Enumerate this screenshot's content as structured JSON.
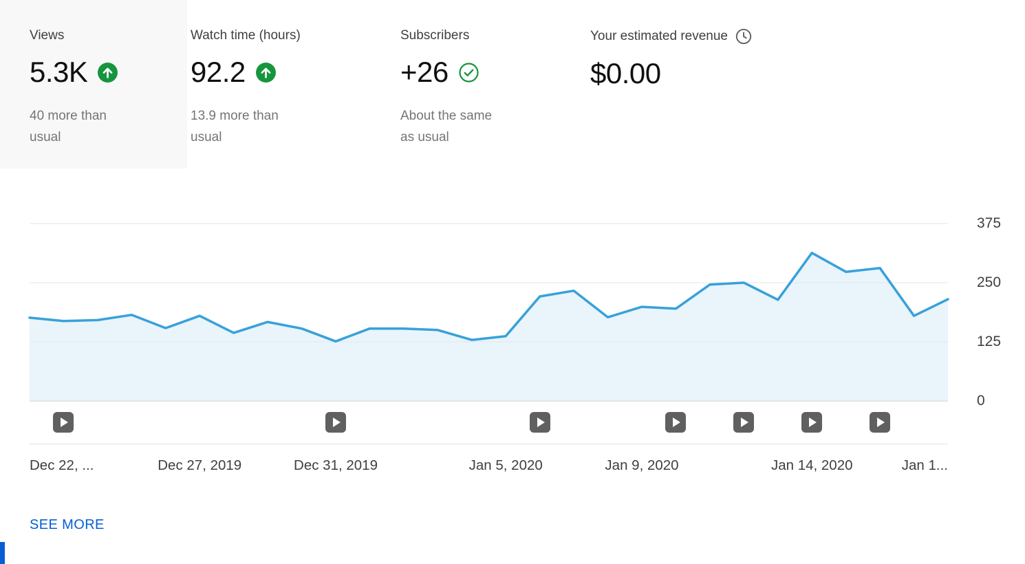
{
  "cards": [
    {
      "title": "Views",
      "value": "5.3K",
      "subtitle": "40 more than usual",
      "trend": "up",
      "selected": true
    },
    {
      "title": "Watch time (hours)",
      "value": "92.2",
      "subtitle": "13.9 more than usual",
      "trend": "up",
      "selected": false
    },
    {
      "title": "Subscribers",
      "value": "+26",
      "subtitle": "About the same as usual",
      "trend": "same-check",
      "selected": false
    },
    {
      "title": "Your estimated revenue",
      "value": "$0.00",
      "subtitle": "",
      "trend": "none",
      "selected": false
    }
  ],
  "icons": {
    "trend_up": "arrow-up-in-green-circle",
    "same_as_usual": "check-in-green-circle-outline",
    "revenue_info": "clock-outline",
    "upload_marker": "play-button"
  },
  "chart_data": {
    "type": "area",
    "x": [
      "Dec 22",
      "Dec 23",
      "Dec 24",
      "Dec 25",
      "Dec 26",
      "Dec 27",
      "Dec 28",
      "Dec 29",
      "Dec 30",
      "Dec 31",
      "Jan 1",
      "Jan 2",
      "Jan 3",
      "Jan 4",
      "Jan 5",
      "Jan 6",
      "Jan 7",
      "Jan 8",
      "Jan 9",
      "Jan 10",
      "Jan 11",
      "Jan 12",
      "Jan 13",
      "Jan 14",
      "Jan 15",
      "Jan 16",
      "Jan 17",
      "Jan 18"
    ],
    "values": [
      176,
      169,
      171,
      182,
      154,
      180,
      144,
      167,
      153,
      126,
      153,
      153,
      150,
      129,
      137,
      221,
      233,
      177,
      199,
      195,
      246,
      250,
      214,
      313,
      273,
      281,
      180,
      215
    ],
    "ylim": [
      0,
      375
    ],
    "y_ticks": [
      375,
      250,
      125,
      0
    ],
    "x_ticks": [
      {
        "index": 0,
        "label": "Dec 22, ...",
        "align": "left"
      },
      {
        "index": 5,
        "label": "Dec 27, 2019",
        "align": "center"
      },
      {
        "index": 9,
        "label": "Dec 31, 2019",
        "align": "center"
      },
      {
        "index": 14,
        "label": "Jan 5, 2020",
        "align": "center"
      },
      {
        "index": 18,
        "label": "Jan 9, 2020",
        "align": "center"
      },
      {
        "index": 23,
        "label": "Jan 14, 2020",
        "align": "center"
      },
      {
        "index": 27,
        "label": "Jan 1...",
        "align": "right"
      }
    ],
    "upload_marker_indexes": [
      1,
      9,
      15,
      19,
      21,
      23,
      25
    ],
    "grid": true,
    "legend": "none",
    "colors": {
      "line": "#38a1da",
      "fill": "#d7ebf7",
      "grid": "#e6e6e6",
      "baseline": "#c9c9c9",
      "marker": "#606060"
    }
  },
  "see_more_label": "SEE MORE",
  "colors": {
    "link_blue": "#065fd4",
    "positive_green": "#17953d",
    "selected_card_bg": "#f8f8f8"
  }
}
